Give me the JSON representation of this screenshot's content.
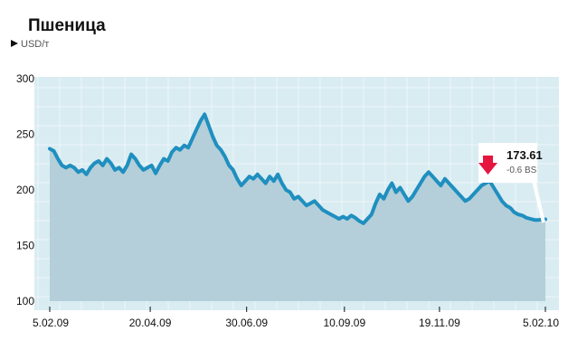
{
  "chart_data": {
    "type": "area",
    "title": "Пшеница",
    "ylabel": "USD/т",
    "ylim": [
      100,
      300
    ],
    "yticks": [
      100,
      150,
      200,
      250,
      300
    ],
    "ytick_labels": [
      "100",
      "150",
      "200",
      "250",
      "300"
    ],
    "xlim": [
      "2009-02-05",
      "2010-02-05"
    ],
    "xticks": [
      "2009-02-05",
      "2009-04-20",
      "2009-06-30",
      "2009-09-10",
      "2009-11-19",
      "2010-02-05"
    ],
    "xtick_labels": [
      "5.02.09",
      "20.04.09",
      "30.06.09",
      "10.09.09",
      "19.11.09",
      "5.02.10"
    ],
    "grid": true,
    "colors": {
      "background": "#d9ecf2",
      "grid": "#ffffff",
      "line": "#1f8fbf",
      "area": "#b4cfd9",
      "down_arrow": "#e5153f",
      "text": "#111111",
      "muted_text": "#555555"
    },
    "series": [
      {
        "x": [
          "2009-02-05",
          "2009-02-08",
          "2009-02-11",
          "2009-02-14",
          "2009-02-17",
          "2009-02-20",
          "2009-02-23",
          "2009-02-26",
          "2009-03-01",
          "2009-03-04",
          "2009-03-07",
          "2009-03-10",
          "2009-03-13",
          "2009-03-16",
          "2009-03-19",
          "2009-03-22",
          "2009-03-25",
          "2009-03-28",
          "2009-03-31",
          "2009-04-03",
          "2009-04-06",
          "2009-04-09",
          "2009-04-12",
          "2009-04-15",
          "2009-04-18",
          "2009-04-21",
          "2009-04-24",
          "2009-04-27",
          "2009-04-30",
          "2009-05-03",
          "2009-05-06",
          "2009-05-09",
          "2009-05-12",
          "2009-05-15",
          "2009-05-18",
          "2009-05-21",
          "2009-05-24",
          "2009-05-27",
          "2009-05-30",
          "2009-06-02",
          "2009-06-05",
          "2009-06-08",
          "2009-06-11",
          "2009-06-14",
          "2009-06-17",
          "2009-06-20",
          "2009-06-23",
          "2009-06-26",
          "2009-06-29",
          "2009-07-02",
          "2009-07-05",
          "2009-07-08",
          "2009-07-11",
          "2009-07-14",
          "2009-07-17",
          "2009-07-20",
          "2009-07-23",
          "2009-07-26",
          "2009-07-29",
          "2009-08-01",
          "2009-08-04",
          "2009-08-07",
          "2009-08-10",
          "2009-08-13",
          "2009-08-16",
          "2009-08-19",
          "2009-08-22",
          "2009-08-25",
          "2009-08-28",
          "2009-08-31",
          "2009-09-03",
          "2009-09-06",
          "2009-09-09",
          "2009-09-12",
          "2009-09-15",
          "2009-09-18",
          "2009-09-21",
          "2009-09-24",
          "2009-09-27",
          "2009-09-30",
          "2009-10-03",
          "2009-10-06",
          "2009-10-09",
          "2009-10-12",
          "2009-10-15",
          "2009-10-18",
          "2009-10-21",
          "2009-10-24",
          "2009-10-27",
          "2009-10-30",
          "2009-11-02",
          "2009-11-05",
          "2009-11-08",
          "2009-11-11",
          "2009-11-14",
          "2009-11-17",
          "2009-11-20",
          "2009-11-23",
          "2009-11-26",
          "2009-11-29",
          "2009-12-02",
          "2009-12-05",
          "2009-12-08",
          "2009-12-11",
          "2009-12-14",
          "2009-12-17",
          "2009-12-20",
          "2009-12-23",
          "2009-12-26",
          "2009-12-29",
          "2010-01-01",
          "2010-01-04",
          "2010-01-07",
          "2010-01-10",
          "2010-01-13",
          "2010-01-16",
          "2010-01-19",
          "2010-01-22",
          "2010-01-25",
          "2010-01-28",
          "2010-01-31",
          "2010-02-03",
          "2010-02-05"
        ],
        "values": [
          237,
          235,
          228,
          222,
          220,
          222,
          220,
          216,
          218,
          214,
          220,
          224,
          226,
          222,
          228,
          224,
          218,
          220,
          216,
          222,
          232,
          228,
          222,
          218,
          220,
          222,
          215,
          222,
          228,
          226,
          234,
          238,
          236,
          240,
          238,
          246,
          254,
          262,
          268,
          258,
          248,
          240,
          236,
          230,
          222,
          218,
          210,
          204,
          208,
          212,
          210,
          214,
          210,
          206,
          212,
          208,
          214,
          206,
          200,
          198,
          192,
          194,
          190,
          186,
          188,
          190,
          186,
          182,
          180,
          178,
          176,
          174,
          176,
          174,
          177,
          175,
          172,
          170,
          174,
          178,
          188,
          196,
          192,
          200,
          206,
          198,
          202,
          196,
          190,
          194,
          200,
          206,
          212,
          216,
          212,
          208,
          204,
          210,
          206,
          202,
          198,
          194,
          190,
          192,
          196,
          200,
          204,
          206,
          208,
          202,
          196,
          190,
          186,
          184,
          180,
          178,
          177,
          175,
          174,
          173,
          173,
          173.61,
          173.61
        ]
      }
    ],
    "annotations": [
      {
        "x": "2010-02-05",
        "label": "173.61",
        "sublabel": "-0.6 BS",
        "direction": "down"
      }
    ]
  }
}
